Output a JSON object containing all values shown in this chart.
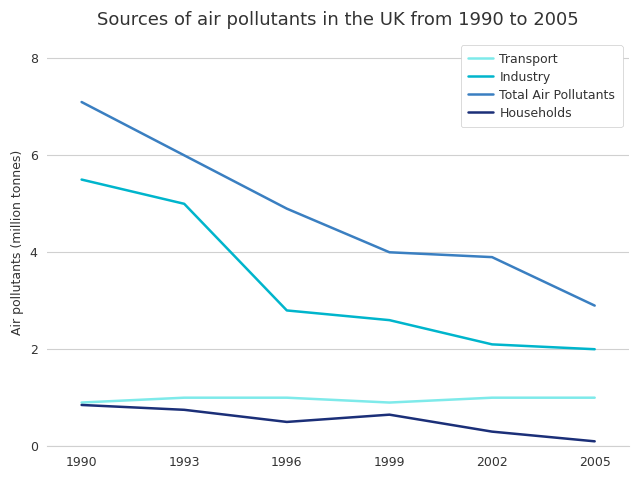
{
  "title": "Sources of air pollutants in the UK from 1990 to 2005",
  "ylabel": "Air pollutants (million tonnes)",
  "years": [
    1990,
    1993,
    1996,
    1999,
    2002,
    2005
  ],
  "series": [
    {
      "label": "Transport",
      "color": "#7eeaea",
      "values": [
        0.9,
        1.0,
        1.0,
        0.9,
        1.0,
        1.0
      ],
      "linewidth": 1.8
    },
    {
      "label": "Industry",
      "color": "#00b5cc",
      "values": [
        5.5,
        5.0,
        2.8,
        2.6,
        2.1,
        2.0
      ],
      "linewidth": 1.8
    },
    {
      "label": "Total Air Pollutants",
      "color": "#3a7fc1",
      "values": [
        7.1,
        6.0,
        4.9,
        4.0,
        3.9,
        2.9
      ],
      "linewidth": 1.8
    },
    {
      "label": "Households",
      "color": "#1b2f78",
      "values": [
        0.85,
        0.75,
        0.5,
        0.65,
        0.3,
        0.1
      ],
      "linewidth": 1.8
    }
  ],
  "ylim": [
    0,
    8.4
  ],
  "yticks": [
    0,
    2,
    4,
    6,
    8
  ],
  "xlim": [
    1989.0,
    2006.0
  ],
  "background_color": "#ffffff",
  "title_fontsize": 13,
  "legend_fontsize": 9,
  "axis_label_fontsize": 9,
  "tick_fontsize": 9,
  "grid_color": "#d0d0d0",
  "text_color": "#333333"
}
